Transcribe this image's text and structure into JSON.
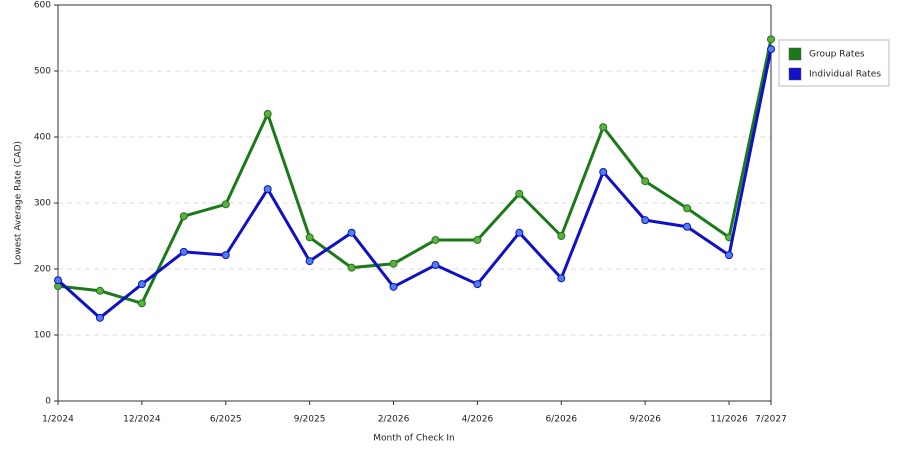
{
  "chart_data": {
    "type": "line",
    "x_label": "Month of Check In",
    "y_label": "Lowest Average Rate (CAD)",
    "categories": [
      "1/2024",
      null,
      "12/2024",
      null,
      "6/2025",
      null,
      "9/2025",
      null,
      "2/2026",
      null,
      "4/2026",
      null,
      "6/2026",
      null,
      "9/2026",
      null,
      "11/2026",
      "7/2027"
    ],
    "series": [
      {
        "name": "Group Rates",
        "color": "#1a7a1a",
        "values": [
          174,
          167,
          148,
          280,
          298,
          435,
          248,
          202,
          208,
          244,
          244,
          314,
          250,
          415,
          333,
          292,
          248,
          548
        ]
      },
      {
        "name": "Individual Rates",
        "color": "#1010c8",
        "values": [
          183,
          126,
          177,
          226,
          221,
          321,
          212,
          255,
          173,
          206,
          177,
          255,
          186,
          347,
          274,
          264,
          221,
          533
        ]
      }
    ],
    "ylim": [
      0,
      600
    ],
    "yticks": [
      0,
      100,
      200,
      300,
      400,
      500,
      600
    ],
    "grid": true,
    "legend": "right"
  }
}
